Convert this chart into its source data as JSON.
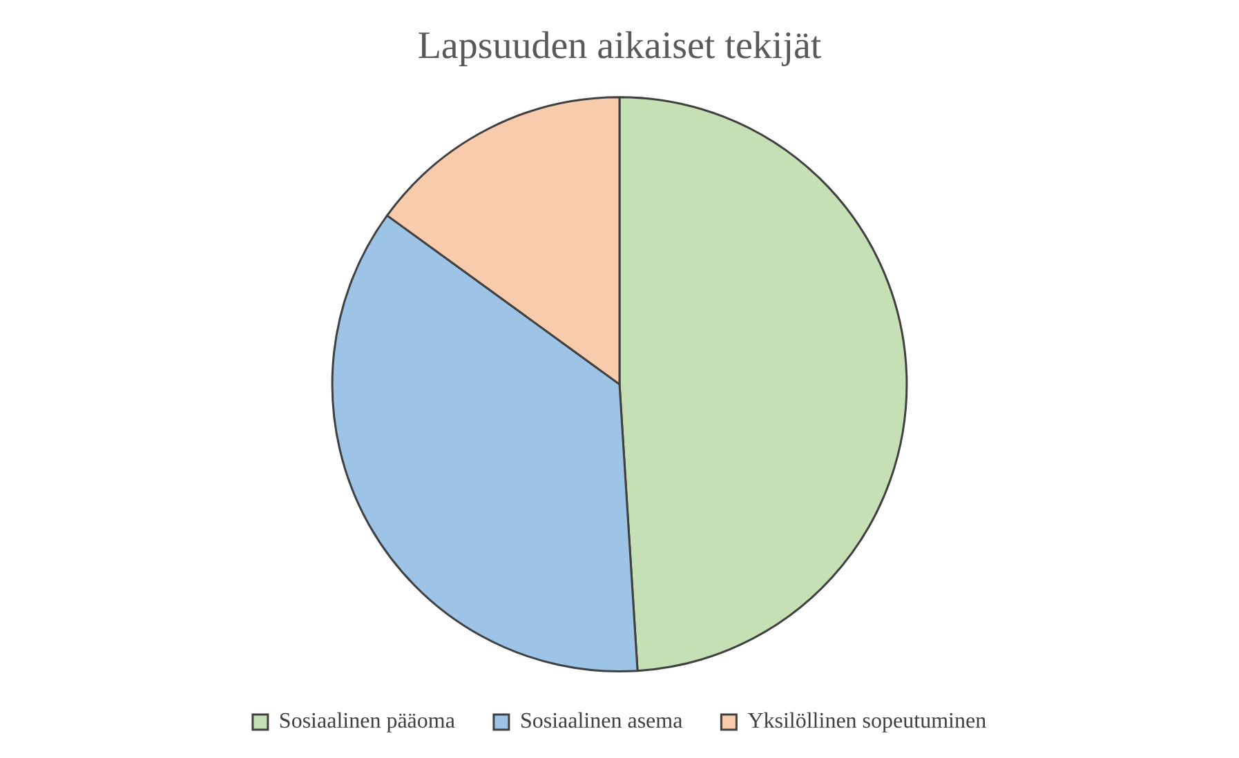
{
  "chart_data": {
    "type": "pie",
    "title": "Lapsuuden aikaiset tekijät",
    "categories": [
      "Sosiaalinen pääoma",
      "Sosiaalinen asema",
      "Yksilöllinen sopeutuminen"
    ],
    "values": [
      49,
      36,
      15
    ],
    "colors": [
      "#c5e0b4",
      "#9dc3e6",
      "#f8cbad"
    ],
    "legend": "bottom"
  }
}
